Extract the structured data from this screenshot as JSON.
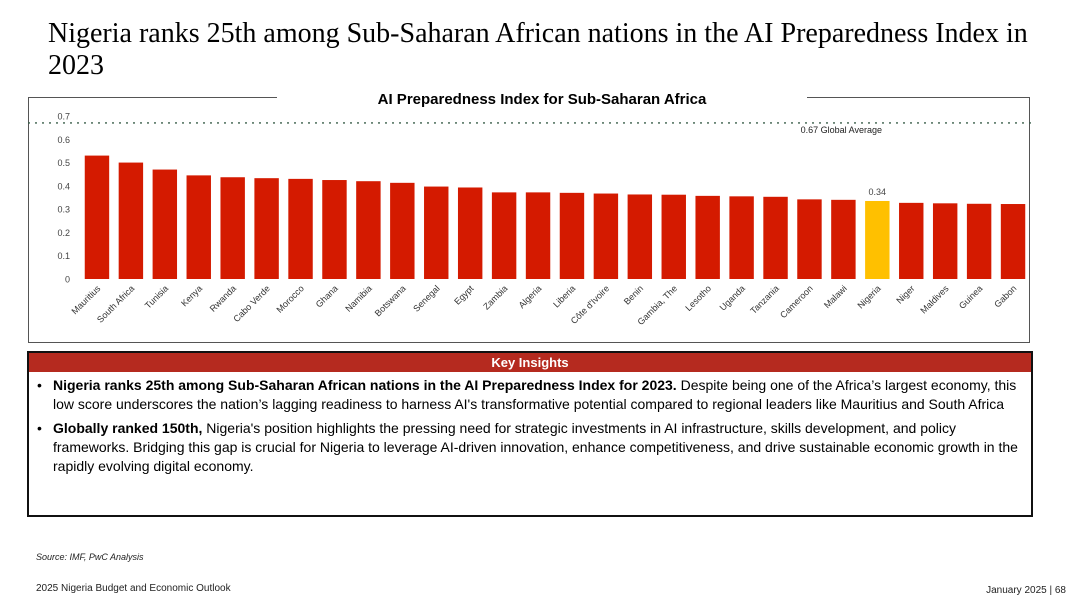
{
  "title": "Nigeria ranks 25th among Sub-Saharan African nations in the AI Preparedness Index in 2023",
  "colors": {
    "bar": "#d41a00",
    "highlight": "#ffc000",
    "header": "#b52a1f"
  },
  "chart_data": {
    "type": "bar",
    "title": "AI Preparedness Index for Sub-Saharan Africa",
    "xlabel": "",
    "ylabel": "",
    "ylim": [
      0,
      0.7
    ],
    "yticks": [
      "0",
      "0.1",
      "0.2",
      "0.3",
      "0.4",
      "0.5",
      "0.6",
      "0.7"
    ],
    "categories": [
      "Mauritius",
      "South Africa",
      "Tunisia",
      "Kenya",
      "Rwanda",
      "Cabo Verde",
      "Morocco",
      "Ghana",
      "Namibia",
      "Botswana",
      "Senegal",
      "Egypt",
      "Zambia",
      "Algeria",
      "Liberia",
      "Côte d'Ivoire",
      "Benin",
      "Gambia, The",
      "Lesotho",
      "Uganda",
      "Tanzania",
      "Cameroon",
      "Malawi",
      "Nigeria",
      "Niger",
      "Maldives",
      "Guinea",
      "Gabon"
    ],
    "values": [
      0.53,
      0.5,
      0.47,
      0.445,
      0.437,
      0.433,
      0.43,
      0.425,
      0.42,
      0.413,
      0.397,
      0.393,
      0.372,
      0.372,
      0.37,
      0.367,
      0.363,
      0.362,
      0.357,
      0.355,
      0.353,
      0.342,
      0.34,
      0.335,
      0.327,
      0.325,
      0.323,
      0.322
    ],
    "highlight_category": "Nigeria",
    "highlight_label": "0.34",
    "reference_line": {
      "value": 0.67,
      "label": "0.67 Global Average"
    }
  },
  "insights": {
    "header": "Key Insights",
    "items": [
      {
        "bold": "Nigeria ranks 25th among Sub-Saharan African nations in the AI Preparedness Index for 2023.",
        "text": " Despite being one of the Africa’s largest economy, this low score underscores the nation’s lagging readiness to harness AI's transformative potential compared to regional leaders like Mauritius and South Africa"
      },
      {
        "bold": "Globally ranked 150th,",
        "text": " Nigeria's position highlights the pressing need for strategic investments in AI infrastructure, skills development, and policy frameworks. Bridging this gap is crucial for Nigeria to leverage AI-driven innovation, enhance competitiveness, and drive sustainable economic growth in the rapidly evolving digital economy."
      }
    ]
  },
  "source": "Source: IMF, PwC Analysis",
  "footer": {
    "left": "2025 Nigeria Budget and Economic Outlook",
    "right": "January 2025 | 68"
  }
}
